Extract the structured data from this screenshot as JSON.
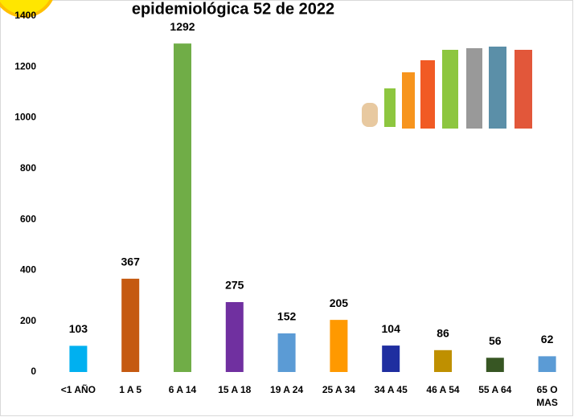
{
  "chart_data": {
    "type": "bar",
    "title": "epidemiológica 52 de 2022",
    "categories": [
      "<1 AÑO",
      "1 A 5",
      "6 A 14",
      "15 A 18",
      "19 A 24",
      "25 A 34",
      "34 A 45",
      "46 A 54",
      "55 A 64",
      "65 O MAS"
    ],
    "values": [
      103,
      367,
      1292,
      275,
      152,
      205,
      104,
      86,
      56,
      62
    ],
    "colors": [
      "#00b0f0",
      "#c55a11",
      "#70ad47",
      "#7030a0",
      "#5b9bd5",
      "#ff9900",
      "#1f2ea0",
      "#bf9000",
      "#375623",
      "#5b9bd5"
    ],
    "ylim": [
      0,
      1400
    ],
    "yticks": [
      0,
      200,
      400,
      600,
      800,
      1000,
      1200,
      1400
    ],
    "grid": false
  }
}
